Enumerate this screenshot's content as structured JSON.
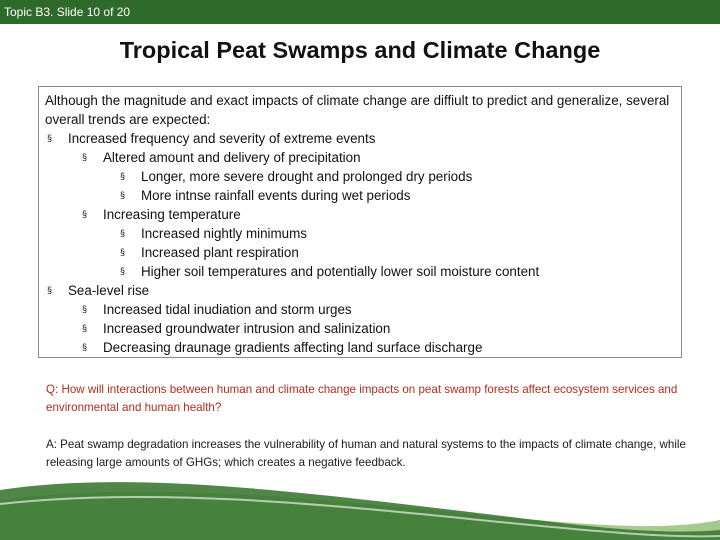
{
  "header": {
    "slide_label": "Topic B3. Slide 10 of 20"
  },
  "title": "Tropical  Peat Swamps and Climate Change",
  "box": {
    "intro": "Although the magnitude and exact impacts of climate change are diffiult to predict and generalize, several overall trends are expected:",
    "bullet_glyph": "§",
    "items": [
      {
        "level": 1,
        "text": "Increased frequency and severity of extreme events"
      },
      {
        "level": 2,
        "text": "Altered amount and delivery of precipitation"
      },
      {
        "level": 3,
        "text": "Longer, more severe drought and prolonged dry periods"
      },
      {
        "level": 3,
        "text": "More intnse rainfall events during wet periods"
      },
      {
        "level": 2,
        "text": "Increasing temperature"
      },
      {
        "level": 3,
        "text": "Increased nightly minimums"
      },
      {
        "level": 3,
        "text": "Increased plant respiration"
      },
      {
        "level": 3,
        "text": "Higher soil temperatures and potentially lower soil moisture content"
      },
      {
        "level": 1,
        "text": "Sea-level rise"
      },
      {
        "level": 2,
        "text": "Increased tidal inudiation and storm urges"
      },
      {
        "level": 2,
        "text": "Increased groundwater intrusion and salinization"
      },
      {
        "level": 2,
        "text": "Decreasing draunage gradients affecting land surface discharge"
      }
    ]
  },
  "question": "Q: How will interactions between human and climate change impacts on peat swamp forests affect ecosystem services and environmental and human health?",
  "answer": "A: Peat swamp degradation increases the vulnerability of human and natural systems to the impacts of climate change, while releasing large amounts of GHGs;  which creates a negative feedback.",
  "colors": {
    "header": "#2e6b2a",
    "question": "#b42d1d",
    "wave_dark": "#3d7a34",
    "wave_light": "#a7c98e"
  }
}
